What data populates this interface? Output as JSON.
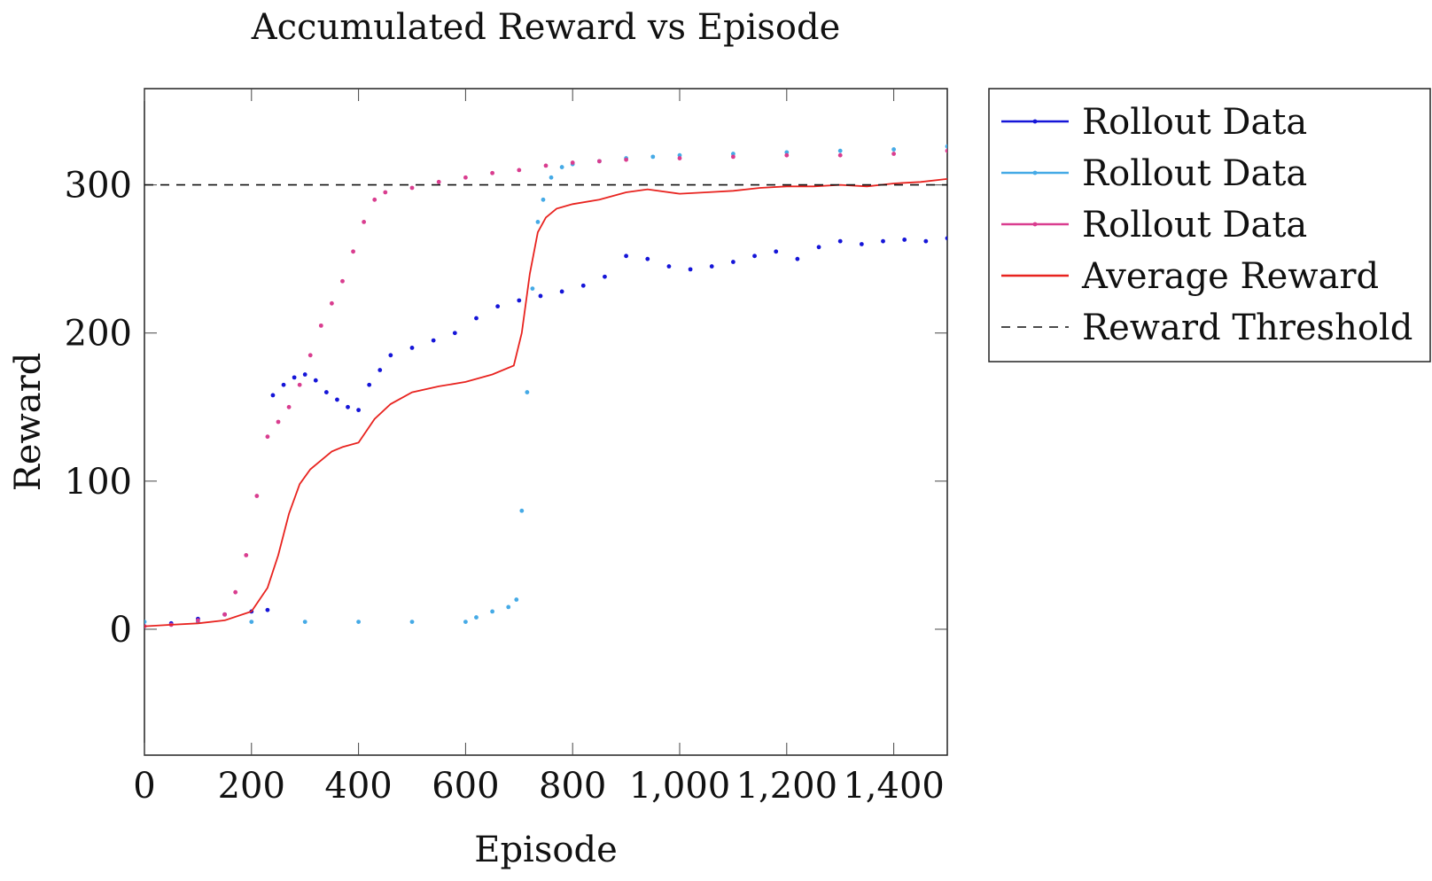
{
  "chart_data": {
    "type": "scatter",
    "title": "Accumulated Reward vs Episode",
    "xlabel": "Episode",
    "ylabel": "Reward",
    "xlim": [
      0,
      1500
    ],
    "ylim": [
      -85,
      365
    ],
    "xticks": [
      0,
      200,
      400,
      600,
      800,
      1000,
      1200,
      1400
    ],
    "xtick_labels": [
      "0",
      "200",
      "400",
      "600",
      "800",
      "1,000",
      "1,200",
      "1,400"
    ],
    "yticks": [
      0,
      100,
      200,
      300
    ],
    "ytick_labels": [
      "0",
      "100",
      "200",
      "300"
    ],
    "grid": false,
    "legend_position": "outside-right",
    "series": [
      {
        "name": "Rollout Data",
        "style": "points",
        "color": "#1515d8",
        "x": [
          0,
          50,
          100,
          150,
          200,
          230,
          240,
          260,
          280,
          300,
          320,
          340,
          360,
          380,
          400,
          420,
          440,
          460,
          500,
          540,
          580,
          620,
          660,
          700,
          740,
          780,
          820,
          860,
          900,
          940,
          980,
          1020,
          1060,
          1100,
          1140,
          1180,
          1220,
          1260,
          1300,
          1340,
          1380,
          1420,
          1460,
          1500
        ],
        "y": [
          2,
          4,
          7,
          10,
          12,
          13,
          158,
          165,
          170,
          172,
          168,
          160,
          155,
          150,
          148,
          165,
          175,
          185,
          190,
          195,
          200,
          210,
          218,
          222,
          225,
          228,
          232,
          238,
          252,
          250,
          245,
          243,
          245,
          248,
          252,
          255,
          250,
          258,
          262,
          260,
          262,
          263,
          262,
          264
        ]
      },
      {
        "name": "Rollout Data",
        "style": "points",
        "color": "#45aae6",
        "x": [
          0,
          100,
          200,
          300,
          400,
          500,
          600,
          620,
          650,
          680,
          695,
          705,
          715,
          725,
          735,
          745,
          760,
          780,
          800,
          850,
          900,
          950,
          1000,
          1100,
          1200,
          1300,
          1400,
          1500
        ],
        "y": [
          5,
          5,
          5,
          5,
          5,
          5,
          5,
          8,
          12,
          15,
          20,
          80,
          160,
          230,
          275,
          290,
          305,
          312,
          314,
          316,
          318,
          319,
          320,
          321,
          322,
          323,
          324,
          326
        ]
      },
      {
        "name": "Rollout Data",
        "style": "points",
        "color": "#d93d8f",
        "x": [
          0,
          50,
          100,
          150,
          170,
          190,
          210,
          230,
          250,
          270,
          290,
          310,
          330,
          350,
          370,
          390,
          410,
          430,
          450,
          500,
          550,
          600,
          650,
          700,
          750,
          800,
          850,
          900,
          1000,
          1100,
          1200,
          1300,
          1400,
          1500
        ],
        "y": [
          2,
          3,
          6,
          10,
          25,
          50,
          90,
          130,
          140,
          150,
          165,
          185,
          205,
          220,
          235,
          255,
          275,
          290,
          295,
          298,
          302,
          305,
          308,
          310,
          313,
          315,
          316,
          317,
          318,
          319,
          320,
          320,
          321,
          323
        ]
      },
      {
        "name": "Average Reward",
        "style": "line",
        "color": "#e8231f",
        "x": [
          0,
          50,
          100,
          150,
          200,
          230,
          250,
          270,
          290,
          310,
          330,
          350,
          370,
          400,
          430,
          460,
          500,
          550,
          600,
          650,
          690,
          705,
          720,
          735,
          750,
          770,
          800,
          850,
          900,
          940,
          1000,
          1050,
          1100,
          1150,
          1200,
          1250,
          1300,
          1350,
          1400,
          1450,
          1500
        ],
        "y": [
          2,
          3,
          4,
          6,
          12,
          28,
          50,
          78,
          98,
          108,
          114,
          120,
          123,
          126,
          142,
          152,
          160,
          164,
          167,
          172,
          178,
          200,
          240,
          268,
          278,
          284,
          287,
          290,
          295,
          297,
          294,
          295,
          296,
          298,
          299,
          299,
          300,
          299,
          301,
          302,
          304
        ]
      },
      {
        "name": "Reward Threshold",
        "style": "dashed",
        "color": "#111111",
        "x": [
          0,
          1500
        ],
        "y": [
          300,
          300
        ]
      }
    ]
  }
}
